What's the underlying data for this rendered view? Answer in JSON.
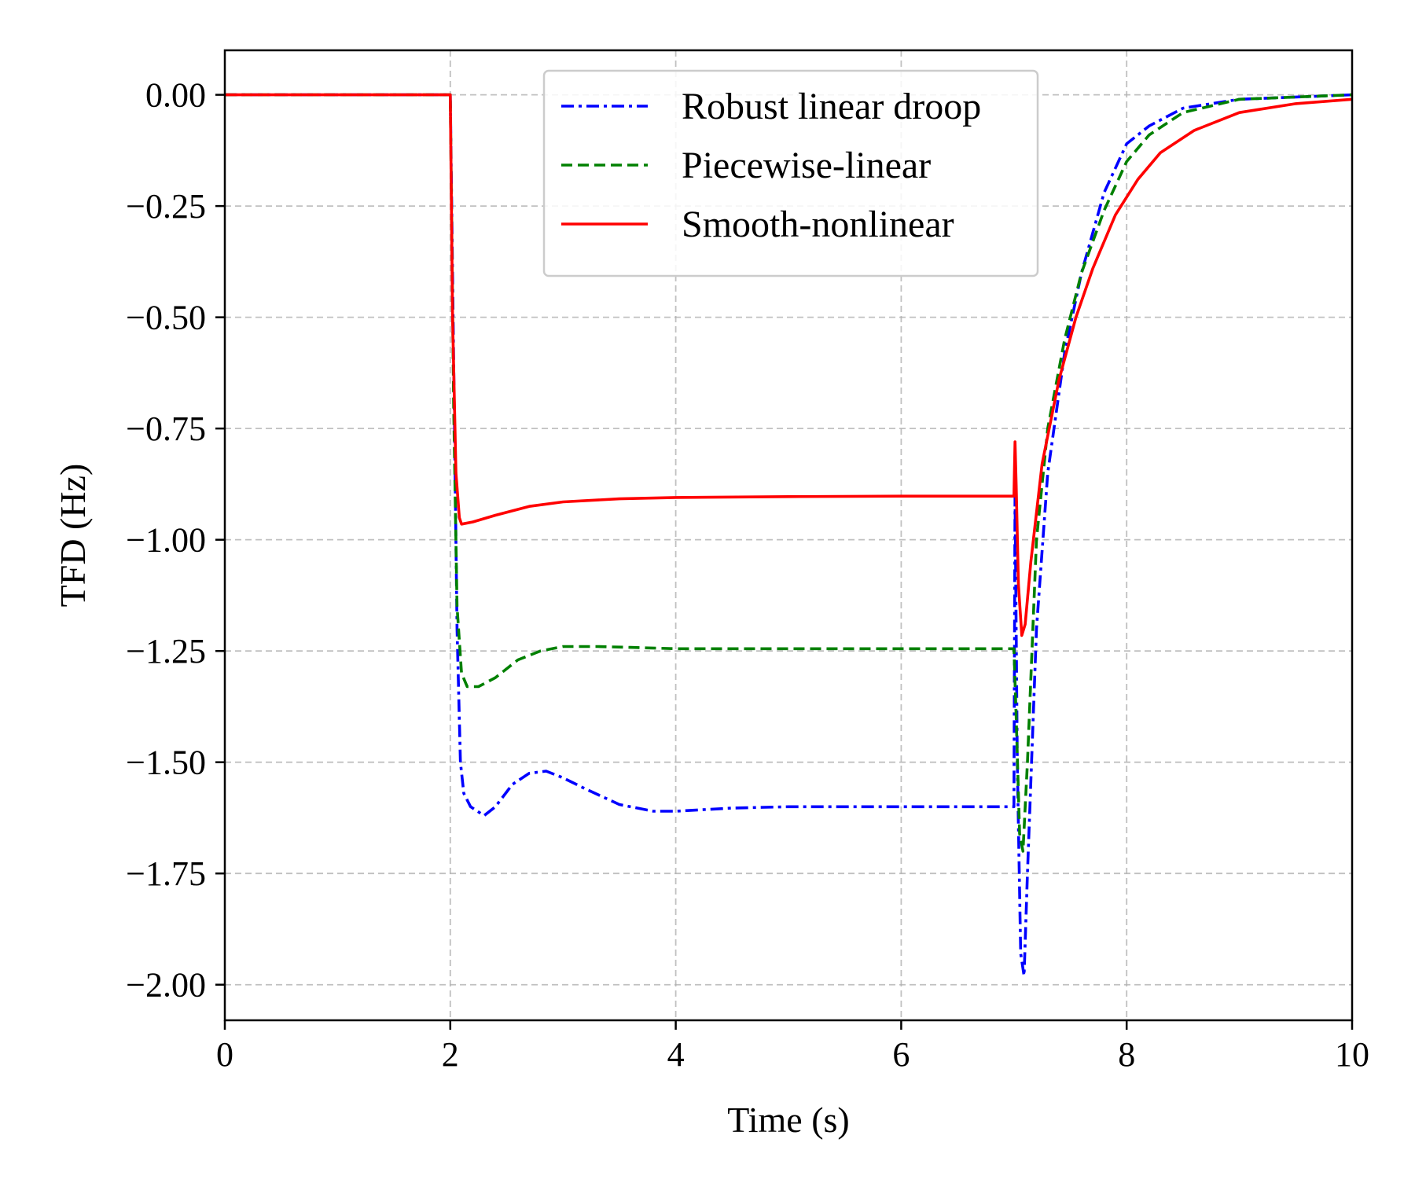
{
  "chart_data": {
    "type": "line",
    "title": "",
    "xlabel": "Time (s)",
    "ylabel": "TFD (Hz)",
    "xlim": [
      0,
      10
    ],
    "ylim": [
      -2.08,
      0.1
    ],
    "x_ticks": [
      0,
      2,
      4,
      6,
      8,
      10
    ],
    "x_tick_labels": [
      "0",
      "2",
      "4",
      "6",
      "8",
      "10"
    ],
    "y_ticks": [
      0,
      -0.25,
      -0.5,
      -0.75,
      -1.0,
      -1.25,
      -1.5,
      -1.75,
      -2.0
    ],
    "y_tick_labels": [
      "0.00",
      "−0.25",
      "−0.50",
      "−0.75",
      "−1.00",
      "−1.25",
      "−1.50",
      "−1.75",
      "−2.00"
    ],
    "grid": true,
    "legend_position": "top-center",
    "series": [
      {
        "name": "Robust linear droop",
        "color": "#0000ff",
        "dash": "dashdot",
        "points": [
          [
            0,
            0
          ],
          [
            1.99,
            0
          ],
          [
            2.0,
            0
          ],
          [
            2.03,
            -0.6
          ],
          [
            2.06,
            -1.2
          ],
          [
            2.09,
            -1.5
          ],
          [
            2.12,
            -1.57
          ],
          [
            2.18,
            -1.6
          ],
          [
            2.3,
            -1.62
          ],
          [
            2.4,
            -1.6
          ],
          [
            2.55,
            -1.55
          ],
          [
            2.7,
            -1.525
          ],
          [
            2.85,
            -1.52
          ],
          [
            3.0,
            -1.535
          ],
          [
            3.2,
            -1.56
          ],
          [
            3.5,
            -1.595
          ],
          [
            3.8,
            -1.61
          ],
          [
            4.0,
            -1.61
          ],
          [
            4.5,
            -1.603
          ],
          [
            5.0,
            -1.6
          ],
          [
            6.0,
            -1.6
          ],
          [
            6.98,
            -1.6
          ],
          [
            7.0,
            -1.6
          ],
          [
            7.01,
            -0.9
          ],
          [
            7.03,
            -1.5
          ],
          [
            7.06,
            -1.93
          ],
          [
            7.09,
            -1.98
          ],
          [
            7.12,
            -1.75
          ],
          [
            7.2,
            -1.2
          ],
          [
            7.3,
            -0.85
          ],
          [
            7.45,
            -0.58
          ],
          [
            7.6,
            -0.4
          ],
          [
            7.8,
            -0.22
          ],
          [
            8.0,
            -0.11
          ],
          [
            8.2,
            -0.07
          ],
          [
            8.5,
            -0.03
          ],
          [
            9.0,
            -0.01
          ],
          [
            10.0,
            0.0
          ]
        ]
      },
      {
        "name": "Piecewise-linear",
        "color": "#008000",
        "dash": "dashed",
        "points": [
          [
            0,
            0
          ],
          [
            1.99,
            0
          ],
          [
            2.0,
            0
          ],
          [
            2.03,
            -0.7
          ],
          [
            2.06,
            -1.15
          ],
          [
            2.1,
            -1.3
          ],
          [
            2.15,
            -1.33
          ],
          [
            2.25,
            -1.33
          ],
          [
            2.4,
            -1.31
          ],
          [
            2.6,
            -1.27
          ],
          [
            2.8,
            -1.25
          ],
          [
            3.0,
            -1.24
          ],
          [
            3.3,
            -1.24
          ],
          [
            3.6,
            -1.242
          ],
          [
            4.0,
            -1.245
          ],
          [
            5.0,
            -1.245
          ],
          [
            6.0,
            -1.245
          ],
          [
            6.98,
            -1.245
          ],
          [
            7.0,
            -1.245
          ],
          [
            7.02,
            -1.4
          ],
          [
            7.05,
            -1.66
          ],
          [
            7.08,
            -1.7
          ],
          [
            7.12,
            -1.5
          ],
          [
            7.2,
            -1.0
          ],
          [
            7.3,
            -0.75
          ],
          [
            7.45,
            -0.55
          ],
          [
            7.6,
            -0.4
          ],
          [
            7.8,
            -0.26
          ],
          [
            8.0,
            -0.15
          ],
          [
            8.2,
            -0.09
          ],
          [
            8.5,
            -0.04
          ],
          [
            9.0,
            -0.01
          ],
          [
            10.0,
            0.0
          ]
        ]
      },
      {
        "name": "Smooth-nonlinear",
        "color": "#ff0000",
        "dash": "solid",
        "points": [
          [
            0,
            0
          ],
          [
            1.99,
            0
          ],
          [
            2.0,
            0
          ],
          [
            2.02,
            -0.5
          ],
          [
            2.05,
            -0.85
          ],
          [
            2.08,
            -0.95
          ],
          [
            2.1,
            -0.965
          ],
          [
            2.2,
            -0.96
          ],
          [
            2.4,
            -0.945
          ],
          [
            2.7,
            -0.925
          ],
          [
            3.0,
            -0.915
          ],
          [
            3.5,
            -0.908
          ],
          [
            4.0,
            -0.905
          ],
          [
            5.0,
            -0.903
          ],
          [
            6.0,
            -0.902
          ],
          [
            6.99,
            -0.902
          ],
          [
            7.0,
            -0.902
          ],
          [
            7.01,
            -0.78
          ],
          [
            7.02,
            -0.88
          ],
          [
            7.04,
            -1.1
          ],
          [
            7.07,
            -1.215
          ],
          [
            7.1,
            -1.19
          ],
          [
            7.15,
            -1.05
          ],
          [
            7.25,
            -0.83
          ],
          [
            7.4,
            -0.64
          ],
          [
            7.55,
            -0.5
          ],
          [
            7.7,
            -0.39
          ],
          [
            7.9,
            -0.27
          ],
          [
            8.1,
            -0.19
          ],
          [
            8.3,
            -0.13
          ],
          [
            8.6,
            -0.08
          ],
          [
            9.0,
            -0.04
          ],
          [
            9.5,
            -0.02
          ],
          [
            10.0,
            -0.01
          ]
        ]
      }
    ]
  }
}
